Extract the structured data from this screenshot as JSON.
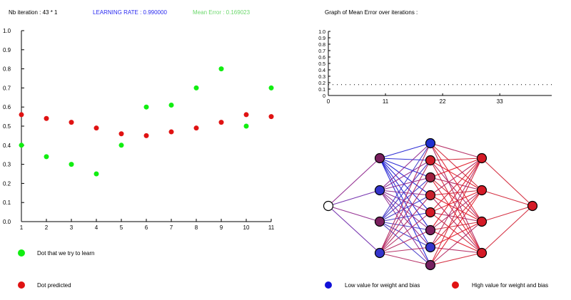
{
  "header": {
    "iteration_text": "Nb iteration : 43 * 1",
    "learning_rate_text": "LEARNING RATE : 0.990000",
    "mean_error_text": "Mean Error : 0.169023",
    "graph_title": "Graph of Mean Error over iterations :"
  },
  "colors": {
    "learning_rate": "#2a2af0",
    "mean_error": "#6cd86c",
    "target_dot": "#11ee11",
    "predicted_dot": "#e01212",
    "low_value": "#1010d8",
    "high_value": "#e01212"
  },
  "chart_data": [
    {
      "type": "scatter",
      "title": "",
      "xlabel": "",
      "ylabel": "",
      "x_ticks": [
        "1",
        "2",
        "3",
        "4",
        "5",
        "6",
        "7",
        "8",
        "9",
        "10",
        "11"
      ],
      "y_ticks": [
        "0.0",
        "0.1",
        "0.2",
        "0.3",
        "0.4",
        "0.5",
        "0.6",
        "0.7",
        "0.8",
        "0.9",
        "1.0"
      ],
      "xlim": [
        1,
        11
      ],
      "ylim": [
        0,
        1
      ],
      "series": [
        {
          "name": "Dot that we try to learn",
          "color": "#11ee11",
          "x": [
            1,
            2,
            3,
            4,
            5,
            6,
            7,
            8,
            9,
            10,
            11
          ],
          "y": [
            0.4,
            0.34,
            0.3,
            0.25,
            0.4,
            0.6,
            0.61,
            0.7,
            0.8,
            0.5,
            0.7
          ]
        },
        {
          "name": "Dot predicted",
          "color": "#e01212",
          "x": [
            1,
            2,
            3,
            4,
            5,
            6,
            7,
            8,
            9,
            10,
            11
          ],
          "y": [
            0.56,
            0.54,
            0.52,
            0.49,
            0.46,
            0.45,
            0.47,
            0.49,
            0.52,
            0.56,
            0.55
          ]
        }
      ]
    },
    {
      "type": "line",
      "title": "Graph of Mean Error over iterations :",
      "x_ticks": [
        "0",
        "11",
        "22",
        "33"
      ],
      "y_ticks": [
        "0",
        "0.1",
        "0.2",
        "0.3",
        "0.4",
        "0.5",
        "0.6",
        "0.7",
        "0.8",
        "0.9",
        "1.0"
      ],
      "xlim": [
        0,
        43
      ],
      "ylim": [
        0,
        1
      ],
      "line_style": "dotted",
      "series": [
        {
          "name": "Mean Error",
          "x": [
            0,
            43
          ],
          "y": [
            0.17,
            0.17
          ]
        }
      ]
    }
  ],
  "network": {
    "layers": [
      [
        "#ffffff"
      ],
      [
        "#7a1f5e",
        "#3333cc",
        "#7a1f5e",
        "#3535cc"
      ],
      [
        "#2030d0",
        "#d01c28",
        "#a02040",
        "#c8202c",
        "#d41a26",
        "#7c1f5c",
        "#3535cc",
        "#762060"
      ],
      [
        "#d41a26",
        "#d41a26",
        "#d41a26",
        "#d41a26"
      ],
      [
        "#d41a26"
      ]
    ]
  },
  "legend": {
    "target_label": "Dot that we try to learn",
    "predicted_label": "Dot predicted",
    "low_label": "Low value for weight and bias",
    "high_label": "High value for weight and bias"
  }
}
